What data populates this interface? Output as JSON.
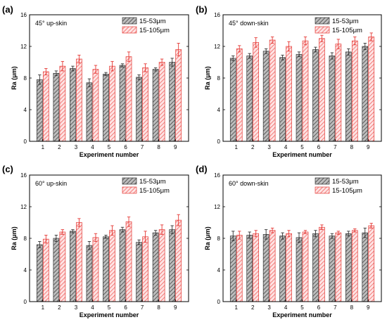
{
  "figure": {
    "colors": {
      "series_a_fill": "#9e9e9e",
      "series_a_stroke": "#333333",
      "series_b_fill": "#f7c6c6",
      "series_b_stroke": "#e53935",
      "axis": "#000000"
    }
  },
  "chart_data": [
    {
      "type": "bar",
      "panel_label": "(a)",
      "annotation": "45° up-skin",
      "xlabel": "Experiment number",
      "ylabel": "Ra (μm)",
      "ylim": [
        0,
        16
      ],
      "yticks": [
        0,
        4,
        8,
        12,
        16
      ],
      "categories": [
        "1",
        "2",
        "3",
        "4",
        "5",
        "6",
        "7",
        "8",
        "9"
      ],
      "legend_position": "top-right",
      "series": [
        {
          "name": "15-53μm",
          "values": [
            7.8,
            8.6,
            9.2,
            7.4,
            8.5,
            9.6,
            8.1,
            9.1,
            10.0
          ],
          "errors": [
            0.6,
            0.3,
            0.3,
            0.5,
            0.2,
            0.2,
            0.3,
            0.2,
            0.5
          ]
        },
        {
          "name": "15-105μm",
          "values": [
            8.8,
            9.5,
            10.4,
            9.1,
            9.5,
            10.7,
            9.3,
            10.0,
            11.6
          ],
          "errors": [
            0.4,
            0.6,
            0.5,
            0.5,
            0.6,
            0.6,
            0.5,
            0.4,
            0.8
          ]
        }
      ]
    },
    {
      "type": "bar",
      "panel_label": "(b)",
      "annotation": "45° down-skin",
      "xlabel": "Experiment number",
      "ylabel": "Ra (μm)",
      "ylim": [
        0,
        16
      ],
      "yticks": [
        0,
        4,
        8,
        12,
        16
      ],
      "categories": [
        "1",
        "2",
        "3",
        "4",
        "5",
        "6",
        "7",
        "8",
        "9"
      ],
      "legend_position": "top-right",
      "series": [
        {
          "name": "15-53μm",
          "values": [
            10.5,
            10.8,
            11.4,
            10.6,
            11.0,
            11.6,
            10.8,
            11.3,
            12.0
          ],
          "errors": [
            0.3,
            0.3,
            0.3,
            0.3,
            0.3,
            0.3,
            0.4,
            0.4,
            0.4
          ]
        },
        {
          "name": "15-105μm",
          "values": [
            11.7,
            12.5,
            12.8,
            12.0,
            12.7,
            13.0,
            12.3,
            12.7,
            13.2
          ],
          "errors": [
            0.4,
            0.6,
            0.4,
            0.6,
            0.5,
            0.4,
            0.6,
            0.5,
            0.5
          ]
        }
      ]
    },
    {
      "type": "bar",
      "panel_label": "(c)",
      "annotation": "60° up-skin",
      "xlabel": "Experiment number",
      "ylabel": "Ra (μm)",
      "ylim": [
        0,
        16
      ],
      "yticks": [
        0,
        4,
        8,
        12,
        16
      ],
      "categories": [
        "1",
        "2",
        "3",
        "4",
        "5",
        "6",
        "7",
        "8",
        "9"
      ],
      "legend_position": "top-right",
      "series": [
        {
          "name": "15-53μm",
          "values": [
            7.2,
            8.0,
            8.9,
            7.1,
            8.2,
            9.1,
            7.5,
            8.7,
            9.1
          ],
          "errors": [
            0.4,
            0.4,
            0.2,
            0.5,
            0.2,
            0.3,
            0.3,
            0.3,
            0.5
          ]
        },
        {
          "name": "15-105μm",
          "values": [
            7.9,
            8.8,
            10.0,
            8.1,
            9.0,
            10.1,
            8.2,
            9.1,
            10.3
          ],
          "errors": [
            0.5,
            0.3,
            0.5,
            0.5,
            0.6,
            0.6,
            0.7,
            0.6,
            0.7
          ]
        }
      ]
    },
    {
      "type": "bar",
      "panel_label": "(d)",
      "annotation": "60° down-skin",
      "xlabel": "Experiment number",
      "ylabel": "Ra (μm)",
      "ylim": [
        0,
        16
      ],
      "yticks": [
        0,
        4,
        8,
        12,
        16
      ],
      "categories": [
        "1",
        "2",
        "3",
        "4",
        "5",
        "6",
        "7",
        "8",
        "9"
      ],
      "legend_position": "top-right",
      "series": [
        {
          "name": "15-53μm",
          "values": [
            8.3,
            8.4,
            8.5,
            8.3,
            8.1,
            8.6,
            8.3,
            8.6,
            8.7
          ],
          "errors": [
            0.6,
            0.4,
            0.6,
            0.4,
            0.6,
            0.4,
            0.3,
            0.3,
            0.6
          ]
        },
        {
          "name": "15-105μm",
          "values": [
            8.4,
            8.6,
            9.0,
            8.6,
            8.8,
            9.4,
            8.7,
            9.0,
            9.6
          ],
          "errors": [
            0.5,
            0.4,
            0.3,
            0.4,
            0.2,
            0.3,
            0.2,
            0.2,
            0.3
          ]
        }
      ]
    }
  ]
}
